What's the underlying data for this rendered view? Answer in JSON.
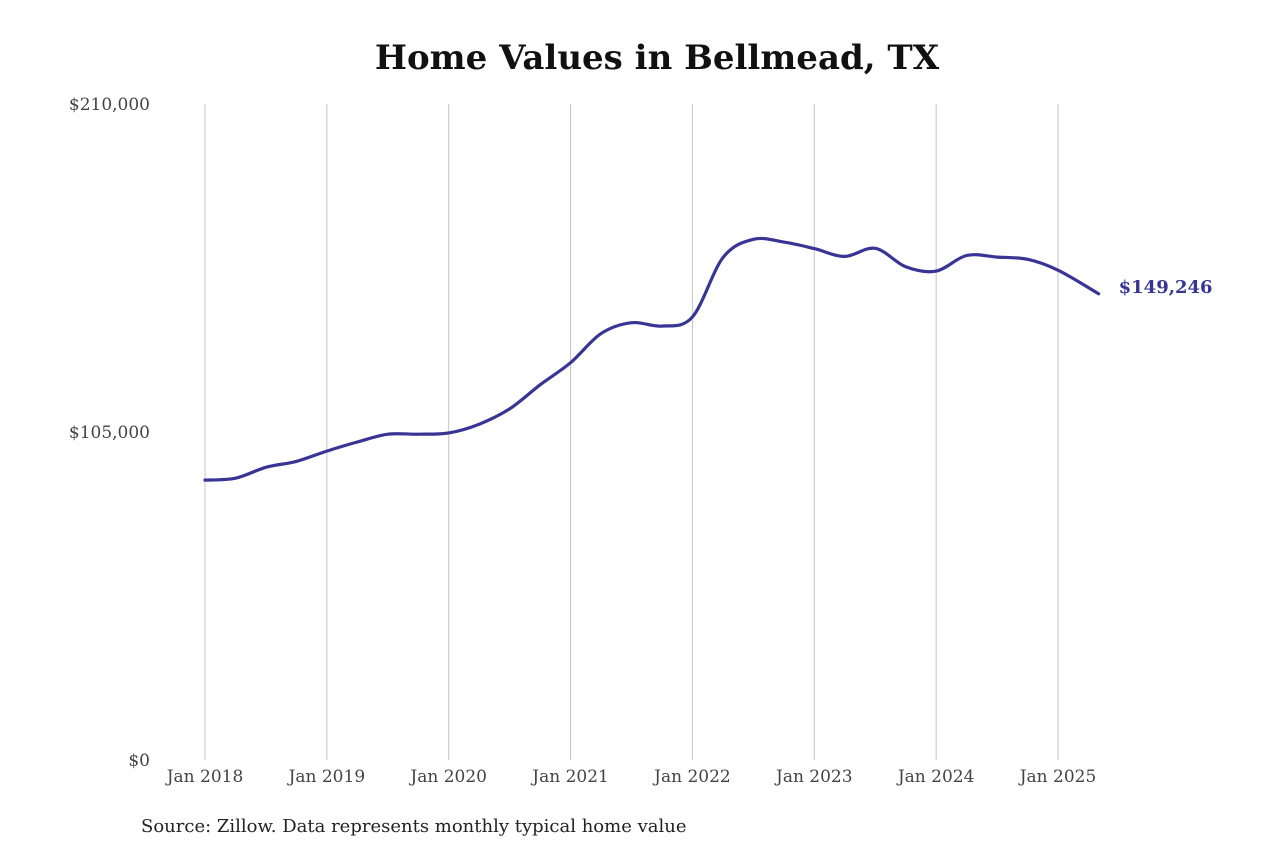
{
  "chart_data": {
    "type": "line",
    "title": "Home Values in Bellmead, TX",
    "xlabel": "",
    "ylabel": "",
    "ylim": [
      0,
      210000
    ],
    "yticks": [
      {
        "value": 0,
        "label": "$0"
      },
      {
        "value": 105000,
        "label": "$105,000"
      },
      {
        "value": 210000,
        "label": "$210,000"
      }
    ],
    "xticks": [
      {
        "value": "2018-01",
        "label": "Jan 2018"
      },
      {
        "value": "2019-01",
        "label": "Jan 2019"
      },
      {
        "value": "2020-01",
        "label": "Jan 2020"
      },
      {
        "value": "2021-01",
        "label": "Jan 2021"
      },
      {
        "value": "2022-01",
        "label": "Jan 2022"
      },
      {
        "value": "2023-01",
        "label": "Jan 2023"
      },
      {
        "value": "2024-01",
        "label": "Jan 2024"
      },
      {
        "value": "2025-01",
        "label": "Jan 2025"
      }
    ],
    "grid": {
      "vertical": true,
      "horizontal": false
    },
    "series": [
      {
        "color": "#383594",
        "points": [
          {
            "x": "2018-01",
            "y": 89600
          },
          {
            "x": "2018-04",
            "y": 90200
          },
          {
            "x": "2018-07",
            "y": 93700
          },
          {
            "x": "2018-10",
            "y": 95600
          },
          {
            "x": "2019-01",
            "y": 98900
          },
          {
            "x": "2019-04",
            "y": 101800
          },
          {
            "x": "2019-07",
            "y": 104300
          },
          {
            "x": "2019-10",
            "y": 104300
          },
          {
            "x": "2020-01",
            "y": 104700
          },
          {
            "x": "2020-04",
            "y": 107500
          },
          {
            "x": "2020-07",
            "y": 112400
          },
          {
            "x": "2020-10",
            "y": 120100
          },
          {
            "x": "2021-01",
            "y": 127200
          },
          {
            "x": "2021-04",
            "y": 136500
          },
          {
            "x": "2021-07",
            "y": 140000
          },
          {
            "x": "2021-10",
            "y": 138900
          },
          {
            "x": "2022-01",
            "y": 141800
          },
          {
            "x": "2022-04",
            "y": 160800
          },
          {
            "x": "2022-07",
            "y": 166700
          },
          {
            "x": "2022-10",
            "y": 165800
          },
          {
            "x": "2023-01",
            "y": 163700
          },
          {
            "x": "2023-04",
            "y": 161200
          },
          {
            "x": "2023-07",
            "y": 163800
          },
          {
            "x": "2023-10",
            "y": 157900
          },
          {
            "x": "2024-01",
            "y": 156500
          },
          {
            "x": "2024-04",
            "y": 161500
          },
          {
            "x": "2024-07",
            "y": 161000
          },
          {
            "x": "2024-10",
            "y": 160300
          },
          {
            "x": "2025-01",
            "y": 156800
          },
          {
            "x": "2025-05",
            "y": 149246
          }
        ]
      }
    ],
    "end_label": "$149,246"
  },
  "source_note": "Source: Zillow. Data represents monthly typical home value"
}
